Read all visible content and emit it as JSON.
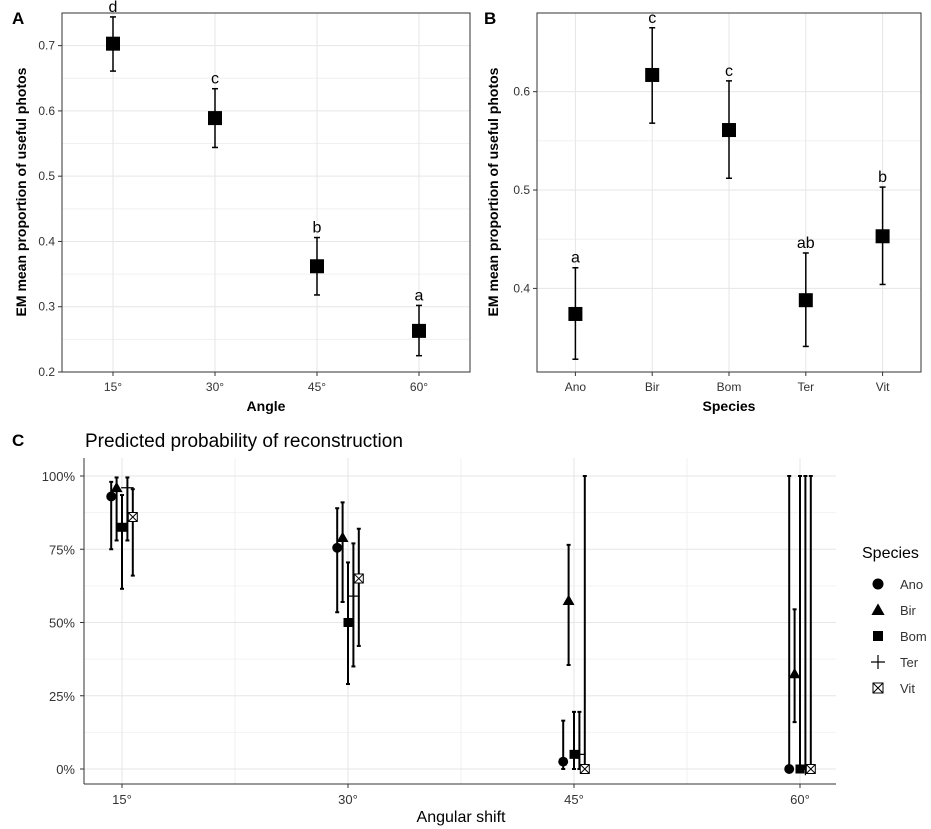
{
  "chart_data": [
    {
      "type": "scatter",
      "panel": "A",
      "xlabel": "Angle",
      "ylabel": "EM mean proportion of useful photos",
      "categories": [
        "15°",
        "30°",
        "45°",
        "60°"
      ],
      "values": [
        0.703,
        0.589,
        0.362,
        0.263
      ],
      "lower": [
        0.661,
        0.544,
        0.318,
        0.225
      ],
      "upper": [
        0.744,
        0.634,
        0.406,
        0.302
      ],
      "letters": [
        "d",
        "c",
        "b",
        "a"
      ],
      "yticks": [
        "0.2",
        "0.3",
        "0.4",
        "0.5",
        "0.6",
        "0.7"
      ],
      "ylim": [
        0.2,
        0.75
      ],
      "grid": true
    },
    {
      "type": "scatter",
      "panel": "B",
      "xlabel": "Species",
      "ylabel": "EM mean proportion of useful photos",
      "categories": [
        "Ano",
        "Bir",
        "Bom",
        "Ter",
        "Vit"
      ],
      "values": [
        0.374,
        0.617,
        0.561,
        0.388,
        0.453
      ],
      "lower": [
        0.328,
        0.568,
        0.512,
        0.341,
        0.404
      ],
      "upper": [
        0.421,
        0.665,
        0.611,
        0.436,
        0.503
      ],
      "letters": [
        "a",
        "c",
        "c",
        "ab",
        "b"
      ],
      "yticks": [
        "0.4",
        "0.5",
        "0.6"
      ],
      "ylim": [
        0.315,
        0.68
      ],
      "grid": true
    },
    {
      "type": "scatter",
      "panel": "C",
      "title": "Predicted probability of reconstruction",
      "xlabel": "Angular shift",
      "ylabel": "",
      "categories": [
        "15°",
        "30°",
        "45°",
        "60°"
      ],
      "yticks": [
        "0%",
        "25%",
        "50%",
        "75%",
        "100%"
      ],
      "ylim": [
        0,
        1
      ],
      "legend_title": "Species",
      "legend_position": "right",
      "grid": true,
      "series": [
        {
          "name": "Ano",
          "shape": "circle",
          "values": [
            0.93,
            0.755,
            0.025,
            0.0
          ],
          "lower": [
            0.75,
            0.535,
            0.0,
            0.0
          ],
          "upper": [
            0.98,
            0.89,
            0.165,
            1.0
          ]
        },
        {
          "name": "Bir",
          "shape": "triangle",
          "values": [
            0.96,
            0.79,
            0.575,
            0.325
          ],
          "lower": [
            0.78,
            0.57,
            0.355,
            0.16
          ],
          "upper": [
            0.995,
            0.91,
            0.765,
            0.545
          ]
        },
        {
          "name": "Bom",
          "shape": "square",
          "values": [
            0.825,
            0.5,
            0.05,
            0.0
          ],
          "lower": [
            0.615,
            0.29,
            0.0,
            0.0
          ],
          "upper": [
            0.935,
            0.705,
            0.195,
            1.0
          ]
        },
        {
          "name": "Ter",
          "shape": "plus",
          "values": [
            0.96,
            0.59,
            0.05,
            0.0
          ],
          "lower": [
            0.78,
            0.35,
            0.0,
            0.0
          ],
          "upper": [
            0.995,
            0.77,
            0.195,
            1.0
          ]
        },
        {
          "name": "Vit",
          "shape": "square-x",
          "values": [
            0.86,
            0.65,
            0.0,
            0.0
          ],
          "lower": [
            0.66,
            0.42,
            0.0,
            0.0
          ],
          "upper": [
            0.955,
            0.82,
            1.0,
            1.0
          ]
        }
      ]
    }
  ]
}
